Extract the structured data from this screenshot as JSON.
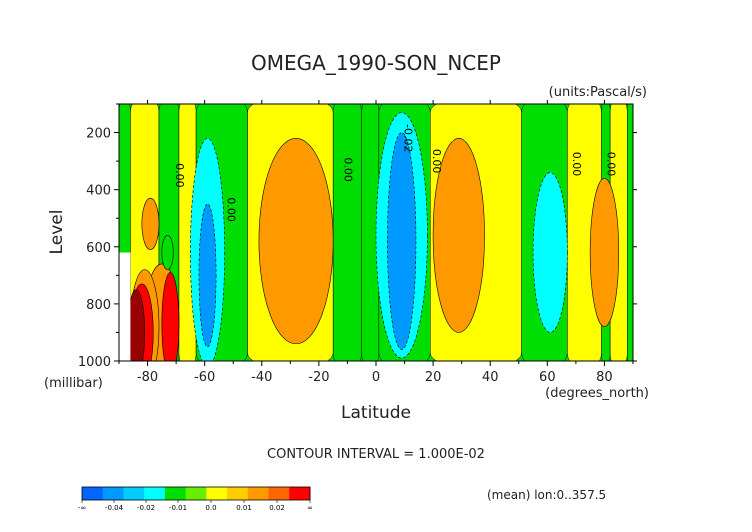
{
  "chart_data": {
    "type": "heatmap",
    "title": "OMEGA_1990-SON_NCEP",
    "units": "(units:Pascal/s)",
    "ylabel": "Level",
    "yunits": "(millibar)",
    "xlabel": "Latitude",
    "xunits": "(degrees_north)",
    "xlim": [
      -90,
      90
    ],
    "ylim": [
      1000,
      100
    ],
    "x_ticks": [
      -80,
      -60,
      -40,
      -20,
      0,
      20,
      40,
      60,
      80
    ],
    "y_ticks": [
      200,
      400,
      600,
      800,
      1000
    ],
    "contour_interval": "CONTOUR INTERVAL = 1.000E-02",
    "mean_note": "(mean) lon:0..357.5",
    "contour_labels": [
      {
        "text": "0.00",
        "lat": -70,
        "level": 350
      },
      {
        "text": "0.00",
        "lat": -52,
        "level": 470
      },
      {
        "text": "0.00",
        "lat": -11,
        "level": 330
      },
      {
        "text": "-0.02",
        "lat": 10,
        "level": 220
      },
      {
        "text": "0.00",
        "lat": 20,
        "level": 300
      },
      {
        "text": "0.00",
        "lat": 69,
        "level": 310
      },
      {
        "text": "0.00",
        "lat": 81,
        "level": 310
      }
    ],
    "bands": [
      {
        "lat": [
          -90,
          -86
        ],
        "color": "#00dd00"
      },
      {
        "lat": [
          -86,
          -76
        ],
        "color": "#ffff00"
      },
      {
        "lat": [
          -76,
          -69
        ],
        "color": "#00dd00"
      },
      {
        "lat": [
          -69,
          -63
        ],
        "color": "#ffff00"
      },
      {
        "lat": [
          -63,
          -45
        ],
        "color": "#00dd00"
      },
      {
        "lat": [
          -45,
          -15
        ],
        "color": "#ffff00"
      },
      {
        "lat": [
          -15,
          -5
        ],
        "color": "#00dd00"
      },
      {
        "lat": [
          -5,
          1
        ],
        "color": "#00dd00"
      },
      {
        "lat": [
          1,
          19
        ],
        "color": "#00dd00"
      },
      {
        "lat": [
          19,
          51
        ],
        "color": "#ffff00"
      },
      {
        "lat": [
          51,
          67
        ],
        "color": "#00dd00"
      },
      {
        "lat": [
          67,
          79
        ],
        "color": "#ffff00"
      },
      {
        "lat": [
          79,
          82
        ],
        "color": "#00dd00"
      },
      {
        "lat": [
          82,
          88
        ],
        "color": "#ffff00"
      },
      {
        "lat": [
          88,
          90
        ],
        "color": "#00dd00"
      }
    ],
    "blobs": [
      {
        "lat": -28,
        "level": 580,
        "rlat": 13,
        "rlev": 360,
        "color": "#ff9900"
      },
      {
        "lat": 29,
        "level": 560,
        "rlat": 9,
        "rlev": 340,
        "color": "#ff9900"
      },
      {
        "lat": 80,
        "level": 620,
        "rlat": 5,
        "rlev": 260,
        "color": "#ff9900"
      },
      {
        "lat": -79,
        "level": 520,
        "rlat": 3,
        "rlev": 90,
        "color": "#ff9900"
      },
      {
        "lat": -59,
        "level": 620,
        "rlat": 6,
        "rlev": 400,
        "color": "#00ffff"
      },
      {
        "lat": -59,
        "level": 700,
        "rlat": 3,
        "rlev": 250,
        "color": "#0099ff"
      },
      {
        "lat": 9,
        "level": 560,
        "rlat": 9,
        "rlev": 430,
        "color": "#00ffff"
      },
      {
        "lat": 9,
        "level": 580,
        "rlat": 5,
        "rlev": 380,
        "color": "#0099ff"
      },
      {
        "lat": 61,
        "level": 620,
        "rlat": 6,
        "rlev": 280,
        "color": "#00ffff"
      },
      {
        "lat": -75,
        "level": 860,
        "rlat": 6,
        "rlev": 200,
        "color": "#ff9900"
      },
      {
        "lat": -72,
        "level": 870,
        "rlat": 3,
        "rlev": 180,
        "color": "#ff0000"
      },
      {
        "lat": -81,
        "level": 880,
        "rlat": 5,
        "rlev": 200,
        "color": "#ff9900"
      },
      {
        "lat": -82,
        "level": 900,
        "rlat": 4,
        "rlev": 170,
        "color": "#ff0000"
      },
      {
        "lat": -84,
        "level": 900,
        "rlat": 3,
        "rlev": 150,
        "color": "#990000"
      },
      {
        "lat": -73,
        "level": 620,
        "rlat": 2,
        "rlev": 60,
        "color": "#00dd00"
      }
    ],
    "missing": [
      {
        "lat": [
          -90,
          -86
        ],
        "level": [
          620,
          1000
        ]
      }
    ],
    "colorbar": {
      "colors": [
        "#0066ff",
        "#0099ff",
        "#00ccff",
        "#00ffff",
        "#00dd00",
        "#66ee00",
        "#ffff00",
        "#ffcc00",
        "#ff9900",
        "#ff6600",
        "#ff0000"
      ],
      "labels": [
        "-∞",
        "-0.04",
        "-0.02",
        "-0.01",
        "0.0",
        "0.01",
        "0.02",
        "∞"
      ]
    }
  }
}
